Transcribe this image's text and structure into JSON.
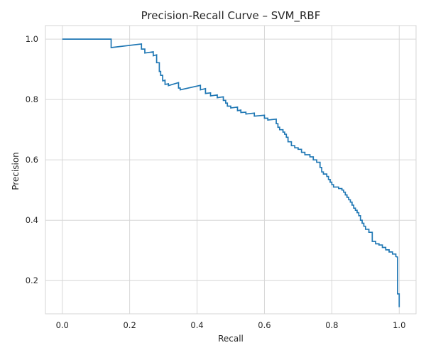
{
  "chart_data": {
    "type": "line",
    "title": "Precision-Recall Curve – SVM_RBF",
    "xlabel": "Recall",
    "ylabel": "Precision",
    "xlim": [
      -0.05,
      1.05
    ],
    "ylim": [
      0.09,
      1.045
    ],
    "xticks": [
      0.0,
      0.2,
      0.4,
      0.6,
      0.8,
      1.0
    ],
    "xtick_labels": [
      "0.0",
      "0.2",
      "0.4",
      "0.6",
      "0.8",
      "1.0"
    ],
    "yticks": [
      0.2,
      0.4,
      0.6,
      0.8,
      1.0
    ],
    "ytick_labels": [
      "0.2",
      "0.4",
      "0.6",
      "0.8",
      "1.0"
    ],
    "grid": true,
    "series": [
      {
        "color": "#1f77b4",
        "step": true,
        "points": [
          [
            0.0,
            1.0
          ],
          [
            0.145,
            1.0
          ],
          [
            0.145,
            0.972
          ],
          [
            0.235,
            0.984
          ],
          [
            0.235,
            0.967
          ],
          [
            0.245,
            0.967
          ],
          [
            0.245,
            0.954
          ],
          [
            0.27,
            0.958
          ],
          [
            0.27,
            0.945
          ],
          [
            0.28,
            0.948
          ],
          [
            0.28,
            0.922
          ],
          [
            0.288,
            0.922
          ],
          [
            0.288,
            0.893
          ],
          [
            0.292,
            0.893
          ],
          [
            0.292,
            0.88
          ],
          [
            0.298,
            0.88
          ],
          [
            0.298,
            0.862
          ],
          [
            0.305,
            0.864
          ],
          [
            0.305,
            0.85
          ],
          [
            0.315,
            0.852
          ],
          [
            0.315,
            0.846
          ],
          [
            0.345,
            0.856
          ],
          [
            0.345,
            0.838
          ],
          [
            0.35,
            0.838
          ],
          [
            0.35,
            0.832
          ],
          [
            0.41,
            0.847
          ],
          [
            0.41,
            0.832
          ],
          [
            0.425,
            0.836
          ],
          [
            0.425,
            0.82
          ],
          [
            0.44,
            0.822
          ],
          [
            0.44,
            0.812
          ],
          [
            0.46,
            0.815
          ],
          [
            0.46,
            0.806
          ],
          [
            0.478,
            0.809
          ],
          [
            0.478,
            0.797
          ],
          [
            0.485,
            0.797
          ],
          [
            0.485,
            0.788
          ],
          [
            0.49,
            0.788
          ],
          [
            0.49,
            0.778
          ],
          [
            0.5,
            0.778
          ],
          [
            0.5,
            0.772
          ],
          [
            0.52,
            0.775
          ],
          [
            0.52,
            0.763
          ],
          [
            0.53,
            0.765
          ],
          [
            0.53,
            0.757
          ],
          [
            0.545,
            0.758
          ],
          [
            0.545,
            0.752
          ],
          [
            0.57,
            0.755
          ],
          [
            0.57,
            0.745
          ],
          [
            0.6,
            0.748
          ],
          [
            0.6,
            0.738
          ],
          [
            0.61,
            0.738
          ],
          [
            0.61,
            0.732
          ],
          [
            0.635,
            0.735
          ],
          [
            0.635,
            0.72
          ],
          [
            0.64,
            0.72
          ],
          [
            0.64,
            0.708
          ],
          [
            0.645,
            0.708
          ],
          [
            0.645,
            0.7
          ],
          [
            0.655,
            0.7
          ],
          [
            0.655,
            0.692
          ],
          [
            0.66,
            0.692
          ],
          [
            0.66,
            0.685
          ],
          [
            0.665,
            0.685
          ],
          [
            0.665,
            0.675
          ],
          [
            0.67,
            0.675
          ],
          [
            0.67,
            0.66
          ],
          [
            0.68,
            0.66
          ],
          [
            0.68,
            0.647
          ],
          [
            0.69,
            0.647
          ],
          [
            0.69,
            0.64
          ],
          [
            0.7,
            0.64
          ],
          [
            0.7,
            0.635
          ],
          [
            0.71,
            0.635
          ],
          [
            0.71,
            0.625
          ],
          [
            0.72,
            0.625
          ],
          [
            0.72,
            0.617
          ],
          [
            0.735,
            0.617
          ],
          [
            0.735,
            0.61
          ],
          [
            0.745,
            0.61
          ],
          [
            0.745,
            0.6
          ],
          [
            0.755,
            0.6
          ],
          [
            0.755,
            0.592
          ],
          [
            0.765,
            0.592
          ],
          [
            0.765,
            0.575
          ],
          [
            0.77,
            0.575
          ],
          [
            0.77,
            0.56
          ],
          [
            0.775,
            0.56
          ],
          [
            0.775,
            0.553
          ],
          [
            0.785,
            0.553
          ],
          [
            0.785,
            0.545
          ],
          [
            0.79,
            0.545
          ],
          [
            0.79,
            0.535
          ],
          [
            0.795,
            0.535
          ],
          [
            0.795,
            0.526
          ],
          [
            0.8,
            0.526
          ],
          [
            0.8,
            0.518
          ],
          [
            0.805,
            0.518
          ],
          [
            0.805,
            0.51
          ],
          [
            0.82,
            0.51
          ],
          [
            0.82,
            0.505
          ],
          [
            0.83,
            0.505
          ],
          [
            0.83,
            0.5
          ],
          [
            0.835,
            0.5
          ],
          [
            0.835,
            0.493
          ],
          [
            0.84,
            0.493
          ],
          [
            0.84,
            0.484
          ],
          [
            0.845,
            0.484
          ],
          [
            0.845,
            0.476
          ],
          [
            0.85,
            0.476
          ],
          [
            0.85,
            0.468
          ],
          [
            0.855,
            0.468
          ],
          [
            0.855,
            0.46
          ],
          [
            0.86,
            0.46
          ],
          [
            0.86,
            0.45
          ],
          [
            0.865,
            0.45
          ],
          [
            0.865,
            0.44
          ],
          [
            0.87,
            0.44
          ],
          [
            0.87,
            0.433
          ],
          [
            0.875,
            0.433
          ],
          [
            0.875,
            0.425
          ],
          [
            0.88,
            0.425
          ],
          [
            0.88,
            0.415
          ],
          [
            0.885,
            0.415
          ],
          [
            0.885,
            0.4
          ],
          [
            0.89,
            0.4
          ],
          [
            0.89,
            0.39
          ],
          [
            0.895,
            0.39
          ],
          [
            0.895,
            0.38
          ],
          [
            0.9,
            0.38
          ],
          [
            0.9,
            0.37
          ],
          [
            0.91,
            0.37
          ],
          [
            0.91,
            0.36
          ],
          [
            0.92,
            0.36
          ],
          [
            0.92,
            0.33
          ],
          [
            0.93,
            0.33
          ],
          [
            0.93,
            0.322
          ],
          [
            0.94,
            0.322
          ],
          [
            0.94,
            0.318
          ],
          [
            0.95,
            0.318
          ],
          [
            0.95,
            0.31
          ],
          [
            0.96,
            0.31
          ],
          [
            0.96,
            0.302
          ],
          [
            0.97,
            0.302
          ],
          [
            0.97,
            0.295
          ],
          [
            0.98,
            0.295
          ],
          [
            0.98,
            0.288
          ],
          [
            0.99,
            0.288
          ],
          [
            0.99,
            0.28
          ],
          [
            0.995,
            0.278
          ],
          [
            0.995,
            0.156
          ],
          [
            1.0,
            0.156
          ],
          [
            1.0,
            0.112
          ]
        ]
      }
    ]
  }
}
